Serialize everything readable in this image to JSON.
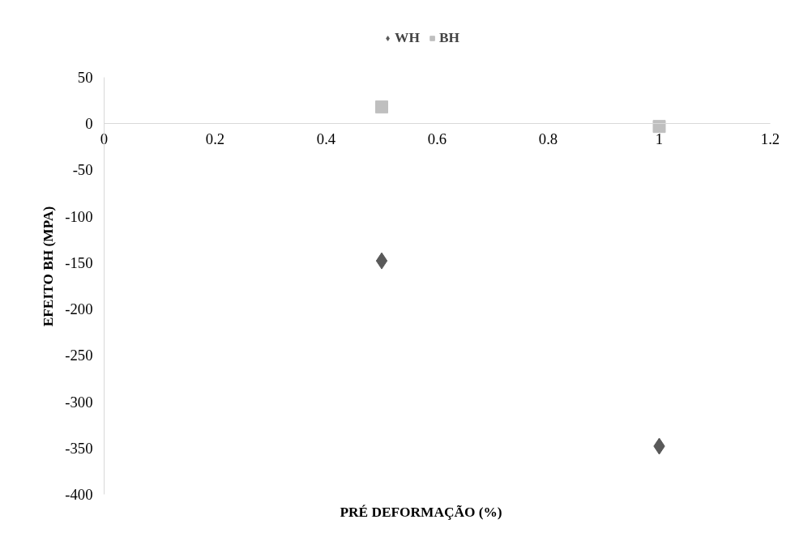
{
  "chart_data": {
    "type": "scatter",
    "xlabel": "PRÉ DEFORMAÇÃO (%)",
    "ylabel": "EFEITO BH (MPA)",
    "x": [
      0.5,
      1
    ],
    "series": [
      {
        "name": "WH",
        "color": "#595959",
        "marker": "diamond",
        "values": [
          -148,
          -348
        ]
      },
      {
        "name": "BH",
        "color": "#bfbfbf",
        "marker": "square",
        "values": [
          18,
          -3
        ]
      }
    ],
    "xlim": [
      0,
      1.2
    ],
    "xticks": [
      0,
      0.2,
      0.4,
      0.6,
      0.8,
      1,
      1.2
    ],
    "ylim": [
      -400,
      50
    ],
    "yticks": [
      50,
      0,
      -50,
      -100,
      -150,
      -200,
      -250,
      -300,
      -350,
      -400
    ],
    "grid": false,
    "legend": "top"
  }
}
